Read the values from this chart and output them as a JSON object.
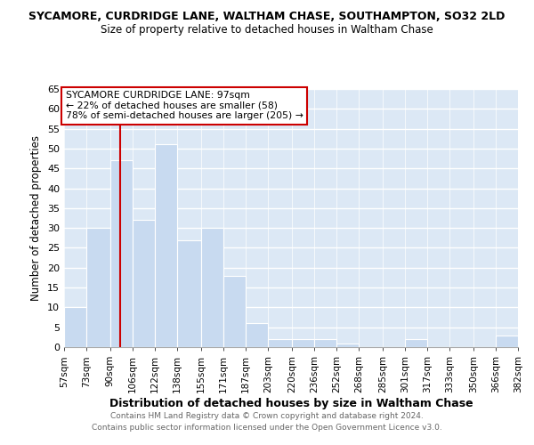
{
  "title": "SYCAMORE, CURDRIDGE LANE, WALTHAM CHASE, SOUTHAMPTON, SO32 2LD",
  "subtitle": "Size of property relative to detached houses in Waltham Chase",
  "xlabel": "Distribution of detached houses by size in Waltham Chase",
  "ylabel": "Number of detached properties",
  "bin_edges": [
    57,
    73,
    90,
    106,
    122,
    138,
    155,
    171,
    187,
    203,
    220,
    236,
    252,
    268,
    285,
    301,
    317,
    333,
    350,
    366,
    382
  ],
  "bin_labels": [
    "57sqm",
    "73sqm",
    "90sqm",
    "106sqm",
    "122sqm",
    "138sqm",
    "155sqm",
    "171sqm",
    "187sqm",
    "203sqm",
    "220sqm",
    "236sqm",
    "252sqm",
    "268sqm",
    "285sqm",
    "301sqm",
    "317sqm",
    "333sqm",
    "350sqm",
    "366sqm",
    "382sqm"
  ],
  "counts": [
    10,
    30,
    47,
    32,
    51,
    27,
    30,
    18,
    6,
    2,
    2,
    2,
    1,
    0,
    0,
    2,
    0,
    0,
    0,
    3
  ],
  "bar_color": "#c8daf0",
  "bar_edge_color": "#ffffff",
  "grid_color": "#ffffff",
  "bg_color": "#dce8f5",
  "vline_x": 97,
  "vline_color": "#cc0000",
  "ylim": [
    0,
    65
  ],
  "yticks": [
    0,
    5,
    10,
    15,
    20,
    25,
    30,
    35,
    40,
    45,
    50,
    55,
    60,
    65
  ],
  "annotation_line1": "SYCAMORE CURDRIDGE LANE: 97sqm",
  "annotation_line2": "← 22% of detached houses are smaller (58)",
  "annotation_line3": "78% of semi-detached houses are larger (205) →",
  "footer1": "Contains HM Land Registry data © Crown copyright and database right 2024.",
  "footer2": "Contains public sector information licensed under the Open Government Licence v3.0."
}
